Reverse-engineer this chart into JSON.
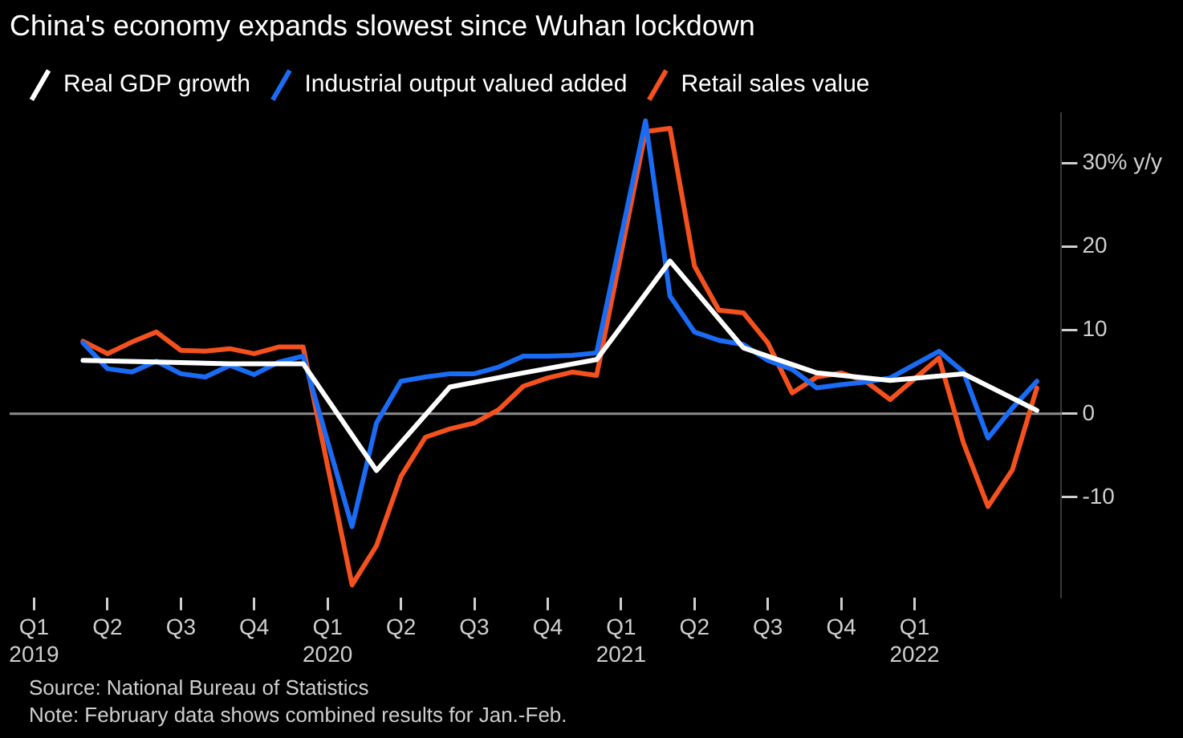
{
  "chart_data": {
    "type": "line",
    "title": "China's economy expands slowest since Wuhan lockdown",
    "xlim": [
      "2018-12",
      "2022-07"
    ],
    "xticks": [
      {
        "value": "2019-01",
        "label": "Q1 2019"
      },
      {
        "value": "2019-04",
        "label": "Q2"
      },
      {
        "value": "2019-07",
        "label": "Q3"
      },
      {
        "value": "2019-10",
        "label": "Q4"
      },
      {
        "value": "2020-01",
        "label": "Q1 2020"
      },
      {
        "value": "2020-04",
        "label": "Q2"
      },
      {
        "value": "2020-07",
        "label": "Q3"
      },
      {
        "value": "2020-10",
        "label": "Q4"
      },
      {
        "value": "2021-01",
        "label": "Q1 2021"
      },
      {
        "value": "2021-04",
        "label": "Q2"
      },
      {
        "value": "2021-07",
        "label": "Q3"
      },
      {
        "value": "2021-10",
        "label": "Q4"
      },
      {
        "value": "2022-01",
        "label": "Q1 2022"
      }
    ],
    "ylim": [
      -22,
      36
    ],
    "yticks": [
      {
        "value": 30,
        "label": "30% y/y"
      },
      20,
      10,
      0,
      -10
    ],
    "legend": "top left",
    "line_style": "solid",
    "marker": "none",
    "ref_lines": [
      {
        "axis": "y",
        "value": 0,
        "color": "#8c8c8c"
      }
    ],
    "series": [
      {
        "name": "Real GDP growth",
        "color": "#ffffff",
        "x": [
          "2019-03",
          "2019-06",
          "2019-09",
          "2019-12",
          "2020-03",
          "2020-06",
          "2020-09",
          "2020-12",
          "2021-03",
          "2021-06",
          "2021-09",
          "2021-12",
          "2022-03",
          "2022-06"
        ],
        "values": [
          6.4,
          6.2,
          6.0,
          6.0,
          -6.8,
          3.2,
          4.9,
          6.5,
          18.3,
          7.9,
          4.9,
          4.0,
          4.8,
          0.4
        ]
      },
      {
        "name": "Industrial output valued added",
        "color": "#1a6cf5",
        "x": [
          "2019-03",
          "2019-04",
          "2019-05",
          "2019-06",
          "2019-07",
          "2019-08",
          "2019-09",
          "2019-10",
          "2019-11",
          "2019-12",
          "2020-02",
          "2020-03",
          "2020-04",
          "2020-05",
          "2020-06",
          "2020-07",
          "2020-08",
          "2020-09",
          "2020-10",
          "2020-11",
          "2020-12",
          "2021-02",
          "2021-03",
          "2021-04",
          "2021-05",
          "2021-06",
          "2021-07",
          "2021-08",
          "2021-09",
          "2021-10",
          "2021-11",
          "2021-12",
          "2022-02",
          "2022-03",
          "2022-04",
          "2022-05",
          "2022-06"
        ],
        "values": [
          8.5,
          5.4,
          5.0,
          6.3,
          4.8,
          4.4,
          5.8,
          4.7,
          6.2,
          6.9,
          -13.5,
          -1.1,
          3.9,
          4.4,
          4.8,
          4.8,
          5.6,
          6.9,
          6.9,
          7.0,
          7.3,
          35.1,
          14.1,
          9.8,
          8.8,
          8.3,
          6.4,
          5.3,
          3.1,
          3.5,
          3.8,
          4.3,
          7.5,
          5.0,
          -2.9,
          0.7,
          3.9
        ]
      },
      {
        "name": "Retail sales value",
        "color": "#f4511e",
        "x": [
          "2019-03",
          "2019-04",
          "2019-05",
          "2019-06",
          "2019-07",
          "2019-08",
          "2019-09",
          "2019-10",
          "2019-11",
          "2019-12",
          "2020-02",
          "2020-03",
          "2020-04",
          "2020-05",
          "2020-06",
          "2020-07",
          "2020-08",
          "2020-09",
          "2020-10",
          "2020-11",
          "2020-12",
          "2021-02",
          "2021-03",
          "2021-04",
          "2021-05",
          "2021-06",
          "2021-07",
          "2021-08",
          "2021-09",
          "2021-10",
          "2021-11",
          "2021-12",
          "2022-02",
          "2022-03",
          "2022-04",
          "2022-05",
          "2022-06"
        ],
        "values": [
          8.7,
          7.2,
          8.6,
          9.8,
          7.6,
          7.5,
          7.8,
          7.2,
          8.0,
          8.0,
          -20.5,
          -15.8,
          -7.5,
          -2.8,
          -1.8,
          -1.1,
          0.5,
          3.3,
          4.3,
          5.0,
          4.6,
          33.8,
          34.2,
          17.7,
          12.4,
          12.1,
          8.5,
          2.5,
          4.4,
          4.9,
          3.9,
          1.7,
          6.7,
          -3.5,
          -11.1,
          -6.7,
          3.1
        ]
      }
    ],
    "annotations": [
      "Source: National Bureau of Statistics",
      "Note: February data shows combined results for Jan.-Feb."
    ]
  }
}
